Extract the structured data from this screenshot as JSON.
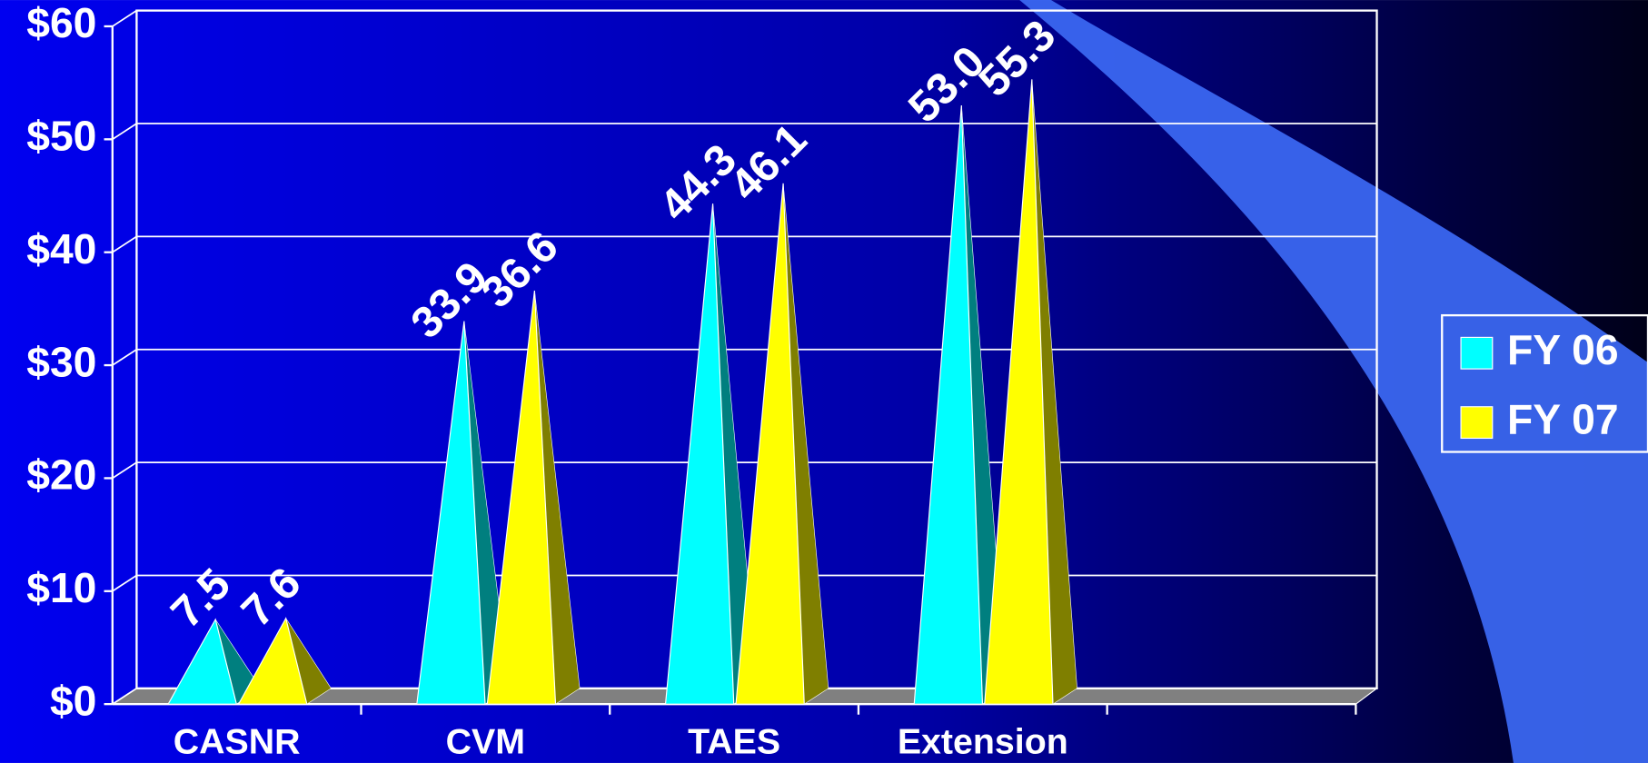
{
  "chart_data": {
    "type": "pyramid3d",
    "categories": [
      "CASNR",
      "CVM",
      "TAES",
      "Extension",
      null
    ],
    "series": [
      {
        "name": "FY 06",
        "color": "#00ffff",
        "values": [
          7.5,
          33.9,
          44.3,
          53.0,
          null
        ],
        "value_labels": [
          "7.5",
          "33.9",
          "44.3",
          "53.0",
          null
        ]
      },
      {
        "name": "FY 07",
        "color": "#ffff00",
        "values": [
          7.6,
          36.6,
          46.1,
          55.3,
          null
        ],
        "value_labels": [
          "7.6",
          "36.6",
          "46.1",
          "55.3",
          null
        ]
      }
    ],
    "ylim": [
      0,
      60
    ],
    "yticks": [
      {
        "value": 0,
        "label": "$0"
      },
      {
        "value": 10,
        "label": "$10"
      },
      {
        "value": 20,
        "label": "$20"
      },
      {
        "value": 30,
        "label": "$30"
      },
      {
        "value": 40,
        "label": "$40"
      },
      {
        "value": 50,
        "label": "$50"
      },
      {
        "value": 60,
        "label": "$60"
      }
    ],
    "grid": true,
    "legend": "right"
  }
}
